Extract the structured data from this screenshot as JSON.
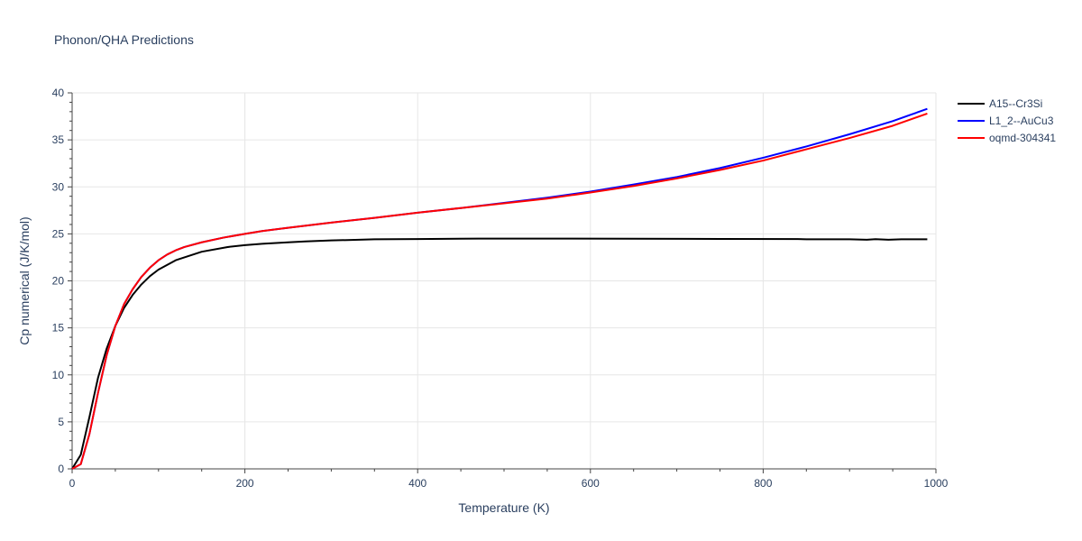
{
  "chart_data": {
    "type": "line",
    "title": "Phonon/QHA Predictions",
    "xlabel": "Temperature (K)",
    "ylabel": "Cp numerical (J/K/mol)",
    "xlim": [
      0,
      1000
    ],
    "ylim": [
      0,
      40
    ],
    "x_ticks": [
      0,
      200,
      400,
      600,
      800,
      1000
    ],
    "y_ticks": [
      0,
      5,
      10,
      15,
      20,
      25,
      30,
      35,
      40
    ],
    "grid": true,
    "legend_position": "top-right",
    "series": [
      {
        "name": "A15--Cr3Si",
        "color": "#000000",
        "x": [
          0,
          10,
          20,
          30,
          40,
          50,
          60,
          70,
          80,
          90,
          100,
          120,
          150,
          180,
          200,
          220,
          250,
          270,
          300,
          350,
          400,
          470,
          550,
          650,
          750,
          840,
          850,
          900,
          920,
          930,
          945,
          960,
          990
        ],
        "y": [
          0,
          1.5,
          5.5,
          9.7,
          12.8,
          15.2,
          17.1,
          18.5,
          19.6,
          20.5,
          21.2,
          22.2,
          23.1,
          23.6,
          23.8,
          23.95,
          24.1,
          24.2,
          24.3,
          24.42,
          24.45,
          24.5,
          24.5,
          24.48,
          24.46,
          24.45,
          24.42,
          24.42,
          24.38,
          24.44,
          24.38,
          24.42,
          24.42
        ]
      },
      {
        "name": "L1_2--AuCu3",
        "color": "#0000ff",
        "x": [
          0,
          10,
          20,
          30,
          40,
          50,
          60,
          70,
          80,
          90,
          100,
          110,
          120,
          130,
          150,
          175,
          200,
          220,
          250,
          300,
          350,
          400,
          450,
          500,
          550,
          600,
          650,
          700,
          750,
          800,
          850,
          900,
          950,
          990
        ],
        "y": [
          0,
          0.5,
          3.7,
          8.1,
          12.1,
          15.2,
          17.5,
          19.1,
          20.4,
          21.4,
          22.2,
          22.8,
          23.25,
          23.6,
          24.1,
          24.6,
          25.0,
          25.3,
          25.65,
          26.2,
          26.7,
          27.25,
          27.75,
          28.3,
          28.85,
          29.5,
          30.25,
          31.05,
          32.0,
          33.1,
          34.3,
          35.6,
          37.0,
          38.3
        ]
      },
      {
        "name": "oqmd-304341",
        "color": "#ff0000",
        "x": [
          0,
          10,
          20,
          30,
          40,
          50,
          60,
          70,
          80,
          90,
          100,
          110,
          120,
          130,
          150,
          175,
          200,
          220,
          250,
          300,
          350,
          400,
          450,
          500,
          550,
          600,
          650,
          700,
          750,
          800,
          850,
          900,
          950,
          990
        ],
        "y": [
          0,
          0.5,
          3.7,
          8.1,
          12.1,
          15.2,
          17.5,
          19.1,
          20.4,
          21.4,
          22.2,
          22.8,
          23.25,
          23.6,
          24.1,
          24.6,
          25.0,
          25.3,
          25.65,
          26.2,
          26.7,
          27.25,
          27.75,
          28.25,
          28.75,
          29.4,
          30.1,
          30.9,
          31.8,
          32.8,
          34.0,
          35.2,
          36.5,
          37.8
        ]
      }
    ]
  }
}
